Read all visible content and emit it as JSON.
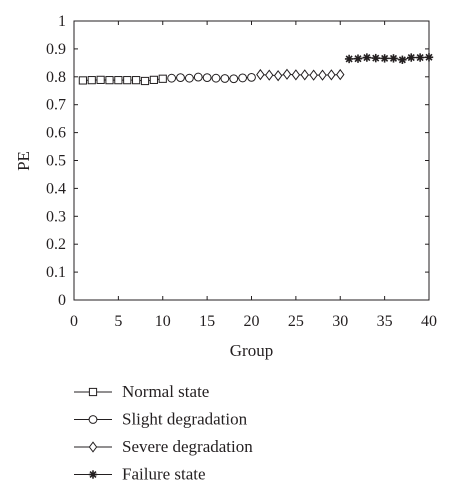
{
  "chart_data": {
    "type": "line",
    "title": "",
    "xlabel": "Group",
    "ylabel": "PE",
    "xlim": [
      0,
      40
    ],
    "ylim": [
      0,
      1
    ],
    "x_ticks": [
      0,
      5,
      10,
      15,
      20,
      25,
      30,
      35,
      40
    ],
    "y_ticks": [
      "0",
      "0.1",
      "0.2",
      "0.3",
      "0.4",
      "0.5",
      "0.6",
      "0.7",
      "0.8",
      "0.9",
      "1"
    ],
    "grid": false,
    "legend_position": "below",
    "series": [
      {
        "name": "Normal state",
        "marker": "square",
        "color": "#231f20",
        "x": [
          1,
          2,
          3,
          4,
          5,
          6,
          7,
          8,
          9,
          10
        ],
        "y": [
          0.787,
          0.788,
          0.789,
          0.788,
          0.788,
          0.788,
          0.788,
          0.785,
          0.789,
          0.793
        ]
      },
      {
        "name": "Slight degradation",
        "marker": "circle",
        "color": "#231f20",
        "x": [
          11,
          12,
          13,
          14,
          15,
          16,
          17,
          18,
          19,
          20
        ],
        "y": [
          0.795,
          0.797,
          0.795,
          0.799,
          0.797,
          0.795,
          0.794,
          0.793,
          0.796,
          0.798
        ]
      },
      {
        "name": "Severe degradation",
        "marker": "diamond",
        "color": "#231f20",
        "x": [
          21,
          22,
          23,
          24,
          25,
          26,
          27,
          28,
          29,
          30
        ],
        "y": [
          0.808,
          0.806,
          0.804,
          0.809,
          0.807,
          0.807,
          0.806,
          0.806,
          0.807,
          0.808
        ]
      },
      {
        "name": "Failure state",
        "marker": "star",
        "color": "#231f20",
        "x": [
          31,
          32,
          33,
          34,
          35,
          36,
          37,
          38,
          39,
          40
        ],
        "y": [
          0.864,
          0.865,
          0.869,
          0.867,
          0.866,
          0.866,
          0.861,
          0.869,
          0.869,
          0.87
        ]
      }
    ]
  }
}
